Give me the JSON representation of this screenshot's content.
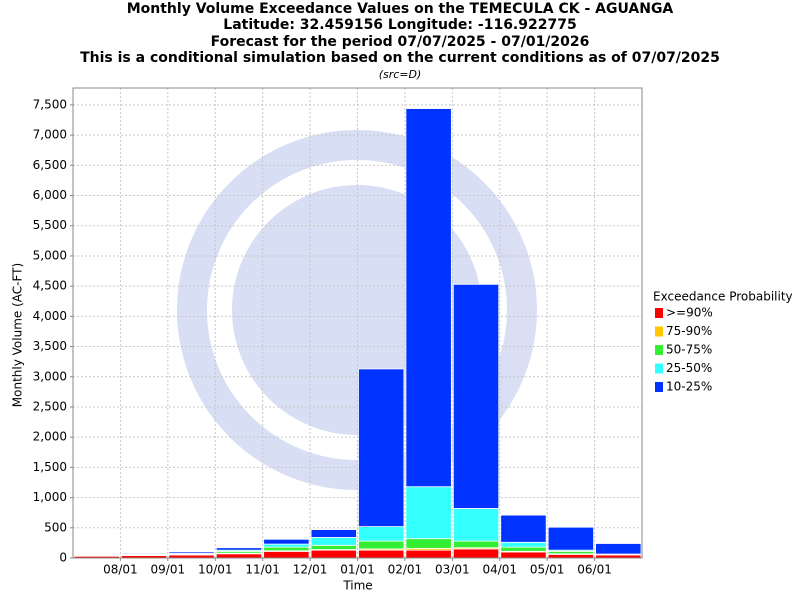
{
  "chart_data": {
    "type": "stacked-bar",
    "title": "Monthly Volume Exceedance Values on the TEMECULA CK - AGUANGA",
    "title_lines": [
      "Latitude: 32.459156 Longitude: -116.922775",
      "Forecast for the period 07/07/2025 - 07/01/2026",
      "This is a conditional simulation based on the current conditions as of 07/07/2025"
    ],
    "subtitle": "(src=D)",
    "x_label": "Time",
    "y_label": "Monthly Volume (AC-FT)",
    "legend_title": "Exceedance Probability",
    "legend_position": "right",
    "grid": true,
    "categories": [
      null,
      null,
      null,
      null,
      null,
      null,
      null,
      null,
      null,
      null,
      null,
      null
    ],
    "xticks": [
      "08/01",
      "09/01",
      "10/01",
      "11/01",
      "12/01",
      "01/01",
      "02/01",
      "03/01",
      "04/01",
      "05/01",
      "06/01"
    ],
    "ylim": [
      0,
      7780
    ],
    "yticks": [
      0,
      500,
      {
        "value": 1000,
        "label": "1,000"
      },
      {
        "value": 1500,
        "label": "1,500"
      },
      {
        "value": 2000,
        "label": "2,000"
      },
      {
        "value": 2500,
        "label": "2,500"
      },
      {
        "value": 3000,
        "label": "3,000"
      },
      {
        "value": 3500,
        "label": "3,500"
      },
      {
        "value": 4000,
        "label": "4,000"
      },
      {
        "value": 4500,
        "label": "4,500"
      },
      {
        "value": 5000,
        "label": "5,000"
      },
      {
        "value": 5500,
        "label": "5,500"
      },
      {
        "value": 6000,
        "label": "6,000"
      },
      {
        "value": 6500,
        "label": "6,500"
      },
      {
        "value": 7000,
        "label": "7,000"
      },
      {
        "value": 7500,
        "label": "7,500"
      }
    ],
    "series": [
      {
        "name": ">=90%",
        "color": "#ff0000",
        "values": [
          30,
          40,
          50,
          70,
          110,
          130,
          130,
          130,
          150,
          100,
          60,
          50
        ]
      },
      {
        "name": "75-90%",
        "color": "#ffc800",
        "values": [
          5,
          5,
          5,
          10,
          10,
          10,
          20,
          30,
          20,
          10,
          10,
          5
        ]
      },
      {
        "name": "50-75%",
        "color": "#33ee33",
        "values": [
          5,
          10,
          10,
          30,
          60,
          70,
          130,
          160,
          110,
          70,
          40,
          5
        ]
      },
      {
        "name": "25-50%",
        "color": "#33ffff",
        "values": [
          5,
          10,
          10,
          20,
          50,
          130,
          240,
          860,
          540,
          80,
          20,
          5
        ]
      },
      {
        "name": "10-25%",
        "color": "#0033ff",
        "values": [
          5,
          15,
          25,
          40,
          80,
          130,
          2610,
          6260,
          3710,
          450,
          380,
          175
        ]
      }
    ]
  }
}
